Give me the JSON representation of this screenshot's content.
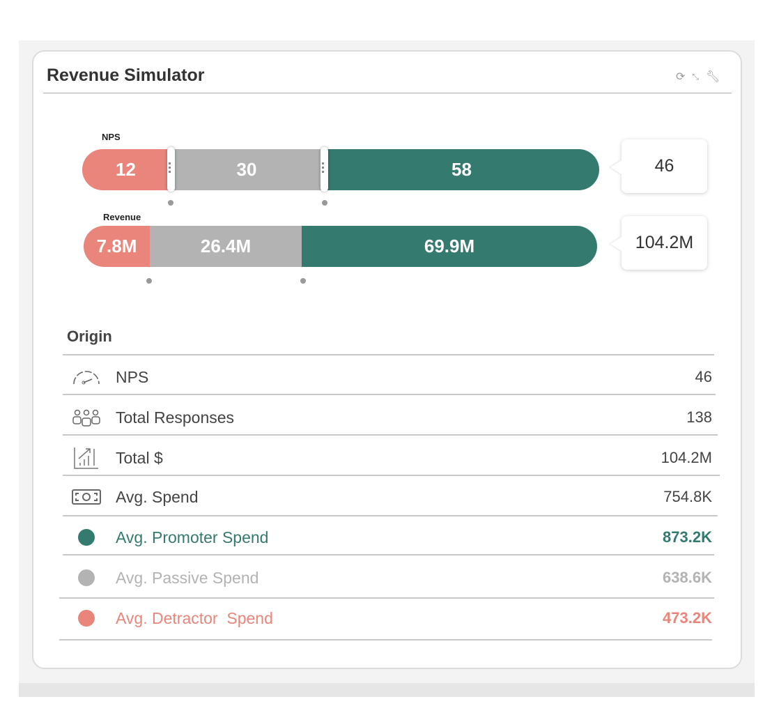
{
  "widget": {
    "title": "Revenue Simulator",
    "tools": [
      "refresh-icon",
      "collapse-icon",
      "wrench-icon"
    ]
  },
  "colors": {
    "detractor": "#e9857a",
    "passive": "#b3b3b3",
    "promoter": "#347a6f"
  },
  "nps_bar": {
    "label": "NPS",
    "detractors": "12",
    "passives": "30",
    "promoters": "58",
    "result": "46"
  },
  "revenue_bar": {
    "label": "Revenue",
    "detractors": "7.8M",
    "passives": "26.4M",
    "promoters": "69.9M",
    "result": "104.2M"
  },
  "origin": {
    "heading": "Origin",
    "rows": [
      {
        "icon": "speedometer-icon",
        "label": "NPS",
        "value": "46"
      },
      {
        "icon": "group-icon",
        "label": "Total Responses",
        "value": "138"
      },
      {
        "icon": "growth-chart-icon",
        "label": "Total $",
        "value": "104.2M"
      },
      {
        "icon": "money-icon",
        "label": "Avg. Spend",
        "value": "754.8K"
      },
      {
        "icon": "promoter-dot-icon",
        "label": "Avg. Promoter Spend",
        "value": "873.2K"
      },
      {
        "icon": "passive-dot-icon",
        "label": "Avg. Passive Spend",
        "value": "638.6K"
      },
      {
        "icon": "detractor-dot-icon",
        "label": "Avg. Detractor  Spend",
        "value": "473.2K"
      }
    ]
  }
}
